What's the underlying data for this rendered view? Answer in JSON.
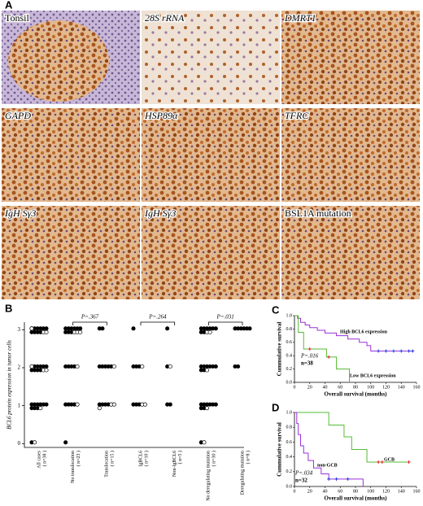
{
  "panel_a": {
    "label": "A",
    "images": [
      {
        "label": "Tonsil"
      },
      {
        "label": "28S rRNA"
      },
      {
        "label": "DMRT1"
      },
      {
        "label": "GAPD"
      },
      {
        "label": "HSP89α"
      },
      {
        "label": "TFRC"
      },
      {
        "label": "IgH Sγ3"
      },
      {
        "label": "IgH Sγ3"
      },
      {
        "label": "BSL1A mutation"
      }
    ]
  },
  "chart_data": [
    {
      "type": "dotplot",
      "panel_label": "B",
      "y_label": "BCL6 protein expression in tumor cells",
      "categories": [
        "All cases",
        "No translocation",
        "Translocation",
        "IgBCL6",
        "Non-IgBCL6",
        "No deregulating mutation",
        "Deregulating mutation"
      ],
      "category_notes": [
        "( n=38 )",
        "( n=23 )",
        "( n=15 )",
        "( n=10 )",
        "( n=5 )",
        "( n=30 )",
        "( n=8 )"
      ],
      "filled": [
        [
          3,
          3,
          3,
          3,
          3,
          3,
          3,
          3,
          3,
          3,
          2,
          2,
          2,
          2,
          2,
          2,
          2,
          2,
          2,
          2,
          1,
          1,
          1,
          1,
          1,
          1,
          1,
          1,
          1,
          0
        ],
        [
          3,
          3,
          3,
          3,
          3,
          3,
          3,
          3,
          3,
          2,
          2,
          2,
          2,
          1,
          1,
          1,
          1,
          0
        ],
        [
          3,
          3,
          2,
          2,
          2,
          2,
          2,
          1,
          1,
          1,
          1
        ],
        [
          3,
          2,
          2,
          2,
          1,
          1,
          1
        ],
        [
          3,
          2,
          1,
          1
        ],
        [
          3,
          3,
          3,
          3,
          3,
          3,
          3,
          3,
          2,
          2,
          2,
          2,
          2,
          2,
          2,
          2,
          1,
          1,
          1,
          1,
          1,
          1,
          1,
          1,
          0
        ],
        [
          3,
          3,
          3,
          3,
          3,
          3,
          2,
          2
        ]
      ],
      "open": [
        [
          3,
          3,
          3,
          2,
          2,
          2,
          1,
          0
        ],
        [
          3,
          3,
          3,
          2,
          1
        ],
        [
          2,
          1,
          1,
          1
        ],
        [
          2,
          1,
          1
        ],
        [
          2
        ],
        [
          3,
          3,
          2,
          1,
          0
        ],
        []
      ],
      "comparisons": [
        "P=.367",
        "P=.264",
        "P=.031"
      ],
      "ylim": [
        -0.1,
        3.2
      ],
      "yticks": [
        0,
        1,
        2,
        3
      ]
    },
    {
      "type": "step",
      "panel_label": "C",
      "x_label": "Overall survival (months)",
      "y_label": "Cummulative survival",
      "annotations": [
        "P=.016",
        "n=38"
      ],
      "xlim": [
        0,
        160
      ],
      "xticks": [
        0,
        20,
        40,
        60,
        80,
        100,
        120,
        140,
        160
      ],
      "ylim": [
        0,
        1
      ],
      "yticks": [
        {
          "value": 0,
          "label": "0.0"
        },
        {
          "value": 0.2,
          "label": "0.2"
        },
        {
          "value": 0.4,
          "label": "0.4"
        },
        {
          "value": 0.6,
          "label": "0.6"
        },
        {
          "value": 0.8,
          "label": "0.8"
        },
        {
          "value": 1,
          "label": "1.0"
        }
      ],
      "series": [
        {
          "name": "High BCL6 expression",
          "color": "#9b30d9",
          "censor_color": "#2233dd",
          "x": [
            0,
            4,
            8,
            14,
            20,
            30,
            40,
            55,
            70,
            85,
            95,
            100,
            155
          ],
          "values": [
            1,
            0.96,
            0.9,
            0.86,
            0.82,
            0.78,
            0.74,
            0.7,
            0.65,
            0.6,
            0.55,
            0.47,
            0.47
          ],
          "censored_x": [
            110,
            120,
            130,
            140,
            150,
            155
          ],
          "censored_values": [
            0.47,
            0.47,
            0.47,
            0.47,
            0.47,
            0.47
          ]
        },
        {
          "name": "Low BCL6 expression",
          "color": "#55bb33",
          "censor_color": "#dd2222",
          "x": [
            0,
            5,
            12,
            42,
            55,
            72
          ],
          "values": [
            1,
            0.75,
            0.5,
            0.38,
            0.2,
            0
          ],
          "censored_x": [
            20,
            45
          ],
          "censored_values": [
            0.5,
            0.38
          ]
        }
      ]
    },
    {
      "type": "step",
      "panel_label": "D",
      "x_label": "Overall survival (months)",
      "y_label": "Cummulative survival",
      "annotations": [
        "P=.034",
        "n=32"
      ],
      "xlim": [
        0,
        160
      ],
      "xticks": [
        0,
        20,
        40,
        60,
        80,
        100,
        120,
        140,
        160
      ],
      "ylim": [
        0,
        1
      ],
      "yticks": [
        {
          "value": 0,
          "label": "0.0"
        },
        {
          "value": 0.2,
          "label": "0.2"
        },
        {
          "value": 0.4,
          "label": "0.4"
        },
        {
          "value": 0.6,
          "label": "0.6"
        },
        {
          "value": 0.8,
          "label": "0.8"
        },
        {
          "value": 1,
          "label": "1.0"
        }
      ],
      "series": [
        {
          "name": "GCB",
          "color": "#55bb33",
          "censor_color": "#dd2222",
          "x": [
            0,
            45,
            65,
            75,
            95,
            150
          ],
          "values": [
            1,
            0.83,
            0.67,
            0.5,
            0.33,
            0.33
          ],
          "censored_x": [
            110,
            115,
            150
          ],
          "censored_values": [
            0.33,
            0.33,
            0.33
          ]
        },
        {
          "name": "non-GCB",
          "color": "#9b30d9",
          "censor_color": "#2233dd",
          "x": [
            0,
            3,
            5,
            8,
            12,
            18,
            25,
            35,
            45,
            90
          ],
          "values": [
            1,
            0.85,
            0.7,
            0.55,
            0.45,
            0.35,
            0.25,
            0.17,
            0.1,
            0
          ],
          "censored_x": [
            45,
            55,
            70
          ],
          "censored_values": [
            0.1,
            0.1,
            0.1
          ]
        }
      ]
    }
  ]
}
